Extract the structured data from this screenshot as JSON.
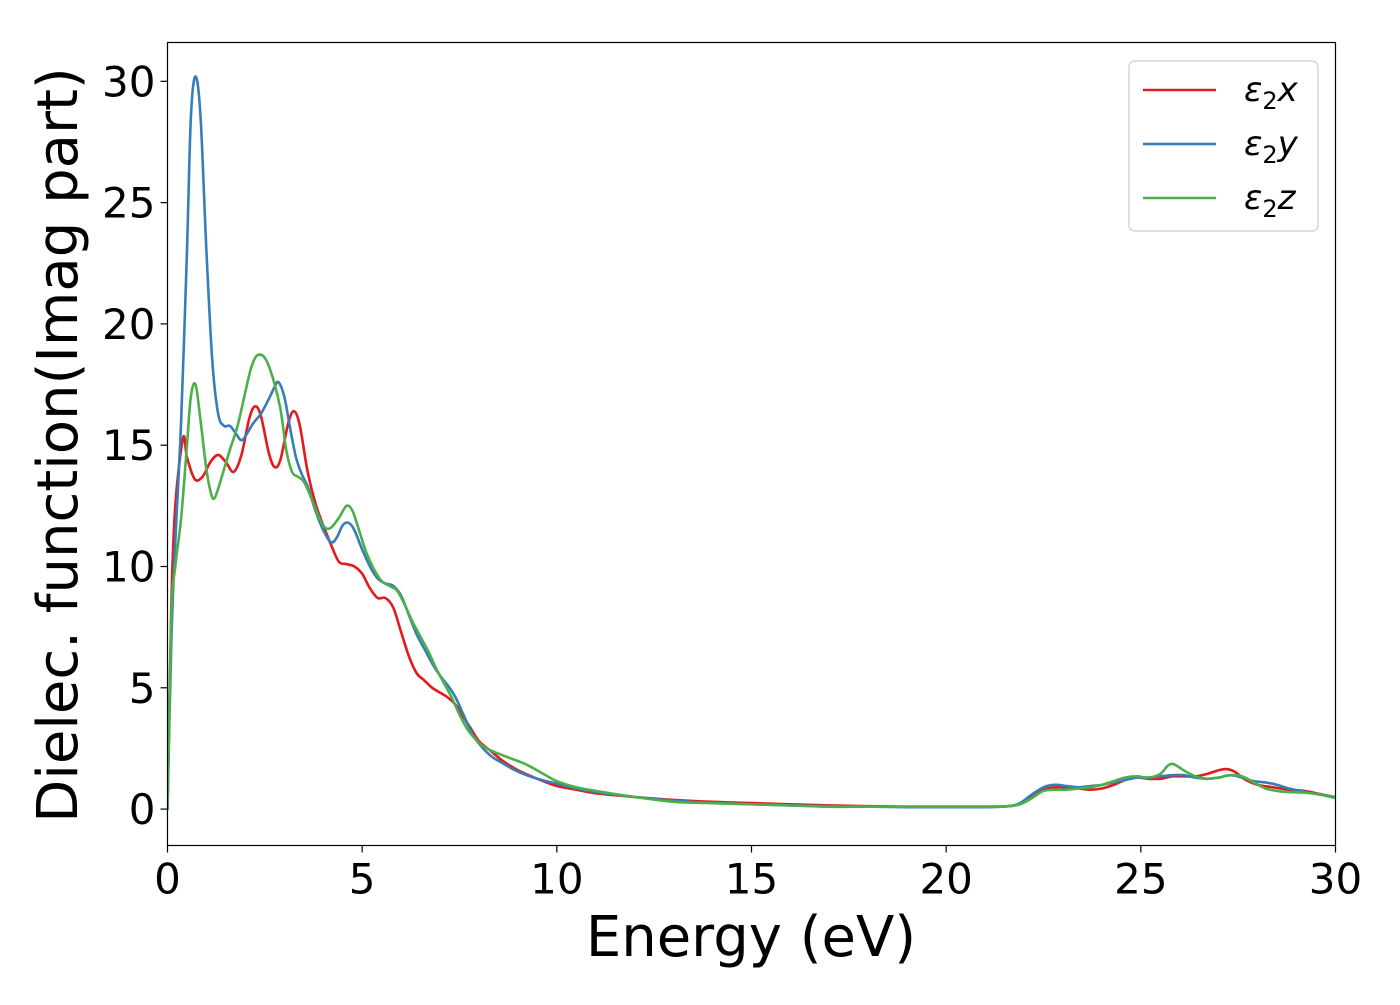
{
  "chart_data": {
    "type": "line",
    "xlabel": "Energy (eV)",
    "ylabel": "Dielec. function(Imag part)",
    "xlim": [
      0,
      30
    ],
    "ylim": [
      -1.5,
      31.6
    ],
    "xticks": [
      0,
      5,
      10,
      15,
      20,
      25,
      30
    ],
    "xtick_labels": [
      "0",
      "5",
      "10",
      "15",
      "20",
      "25",
      "30"
    ],
    "yticks": [
      0,
      5,
      10,
      15,
      20,
      25,
      30
    ],
    "ytick_labels": [
      "0",
      "5",
      "10",
      "15",
      "20",
      "25",
      "30"
    ],
    "grid": false,
    "legend_position": "top-right",
    "series": [
      {
        "name": "ε2x",
        "legend_base": "ε",
        "legend_sub": "2",
        "legend_tail": "x",
        "color": "#e41a1c",
        "points": [
          [
            0,
            0
          ],
          [
            0.1,
            8.5
          ],
          [
            0.2,
            12.5
          ],
          [
            0.4,
            15.3
          ],
          [
            0.5,
            14.5
          ],
          [
            0.7,
            13.6
          ],
          [
            0.9,
            13.7
          ],
          [
            1.1,
            14.3
          ],
          [
            1.3,
            14.6
          ],
          [
            1.5,
            14.3
          ],
          [
            1.7,
            13.9
          ],
          [
            1.9,
            14.6
          ],
          [
            2.1,
            16.1
          ],
          [
            2.25,
            16.6
          ],
          [
            2.4,
            16.2
          ],
          [
            2.6,
            14.7
          ],
          [
            2.75,
            14.1
          ],
          [
            2.9,
            14.4
          ],
          [
            3.1,
            15.9
          ],
          [
            3.25,
            16.4
          ],
          [
            3.4,
            15.8
          ],
          [
            3.6,
            13.9
          ],
          [
            3.8,
            12.6
          ],
          [
            4.0,
            11.7
          ],
          [
            4.2,
            10.9
          ],
          [
            4.4,
            10.2
          ],
          [
            4.6,
            10.1
          ],
          [
            4.8,
            10.0
          ],
          [
            5.0,
            9.7
          ],
          [
            5.2,
            9.1
          ],
          [
            5.4,
            8.7
          ],
          [
            5.6,
            8.7
          ],
          [
            5.8,
            8.3
          ],
          [
            6.0,
            7.3
          ],
          [
            6.2,
            6.3
          ],
          [
            6.4,
            5.6
          ],
          [
            6.6,
            5.3
          ],
          [
            6.8,
            5.0
          ],
          [
            7.0,
            4.8
          ],
          [
            7.2,
            4.6
          ],
          [
            7.4,
            4.3
          ],
          [
            7.6,
            3.8
          ],
          [
            7.8,
            3.3
          ],
          [
            8.0,
            2.8
          ],
          [
            8.3,
            2.4
          ],
          [
            8.6,
            2.0
          ],
          [
            9.0,
            1.6
          ],
          [
            9.5,
            1.25
          ],
          [
            10.0,
            0.95
          ],
          [
            10.5,
            0.8
          ],
          [
            11.0,
            0.65
          ],
          [
            12.0,
            0.5
          ],
          [
            13.0,
            0.38
          ],
          [
            14.0,
            0.3
          ],
          [
            15.0,
            0.25
          ],
          [
            16.0,
            0.2
          ],
          [
            17.0,
            0.15
          ],
          [
            18.0,
            0.12
          ],
          [
            19.0,
            0.1
          ],
          [
            20.0,
            0.1
          ],
          [
            21.0,
            0.1
          ],
          [
            21.6,
            0.12
          ],
          [
            21.9,
            0.22
          ],
          [
            22.2,
            0.5
          ],
          [
            22.5,
            0.8
          ],
          [
            22.8,
            0.9
          ],
          [
            23.1,
            0.9
          ],
          [
            23.4,
            0.85
          ],
          [
            23.7,
            0.8
          ],
          [
            24.0,
            0.85
          ],
          [
            24.3,
            1.0
          ],
          [
            24.6,
            1.2
          ],
          [
            24.9,
            1.3
          ],
          [
            25.2,
            1.25
          ],
          [
            25.5,
            1.25
          ],
          [
            25.8,
            1.35
          ],
          [
            26.1,
            1.35
          ],
          [
            26.4,
            1.35
          ],
          [
            26.7,
            1.45
          ],
          [
            27.0,
            1.6
          ],
          [
            27.2,
            1.65
          ],
          [
            27.4,
            1.55
          ],
          [
            27.7,
            1.2
          ],
          [
            28.0,
            1.0
          ],
          [
            28.4,
            0.9
          ],
          [
            28.8,
            0.8
          ],
          [
            29.2,
            0.75
          ],
          [
            29.6,
            0.62
          ],
          [
            30.0,
            0.48
          ]
        ]
      },
      {
        "name": "ε2y",
        "legend_base": "ε",
        "legend_sub": "2",
        "legend_tail": "y",
        "color": "#377eb8",
        "points": [
          [
            0,
            0
          ],
          [
            0.1,
            7.0
          ],
          [
            0.2,
            11.0
          ],
          [
            0.35,
            16.0
          ],
          [
            0.5,
            23.0
          ],
          [
            0.6,
            28.5
          ],
          [
            0.72,
            30.2
          ],
          [
            0.85,
            28.5
          ],
          [
            1.0,
            23.0
          ],
          [
            1.15,
            18.5
          ],
          [
            1.3,
            16.3
          ],
          [
            1.45,
            15.8
          ],
          [
            1.6,
            15.8
          ],
          [
            1.75,
            15.5
          ],
          [
            1.9,
            15.2
          ],
          [
            2.05,
            15.5
          ],
          [
            2.2,
            15.9
          ],
          [
            2.4,
            16.3
          ],
          [
            2.6,
            16.9
          ],
          [
            2.75,
            17.4
          ],
          [
            2.85,
            17.6
          ],
          [
            3.0,
            17.0
          ],
          [
            3.15,
            15.7
          ],
          [
            3.3,
            14.5
          ],
          [
            3.45,
            13.8
          ],
          [
            3.6,
            13.3
          ],
          [
            3.8,
            12.3
          ],
          [
            4.0,
            11.5
          ],
          [
            4.2,
            11.0
          ],
          [
            4.35,
            11.2
          ],
          [
            4.5,
            11.7
          ],
          [
            4.65,
            11.8
          ],
          [
            4.8,
            11.5
          ],
          [
            5.0,
            10.7
          ],
          [
            5.2,
            10.0
          ],
          [
            5.4,
            9.5
          ],
          [
            5.6,
            9.3
          ],
          [
            5.8,
            9.2
          ],
          [
            6.0,
            8.8
          ],
          [
            6.2,
            8.0
          ],
          [
            6.4,
            7.2
          ],
          [
            6.6,
            6.6
          ],
          [
            6.8,
            6.0
          ],
          [
            7.0,
            5.5
          ],
          [
            7.2,
            5.1
          ],
          [
            7.4,
            4.6
          ],
          [
            7.6,
            3.9
          ],
          [
            7.8,
            3.2
          ],
          [
            8.0,
            2.7
          ],
          [
            8.3,
            2.2
          ],
          [
            8.6,
            1.9
          ],
          [
            9.0,
            1.55
          ],
          [
            9.5,
            1.25
          ],
          [
            10.0,
            1.05
          ],
          [
            10.5,
            0.85
          ],
          [
            11.0,
            0.7
          ],
          [
            12.0,
            0.5
          ],
          [
            13.0,
            0.35
          ],
          [
            14.0,
            0.25
          ],
          [
            15.0,
            0.2
          ],
          [
            16.0,
            0.15
          ],
          [
            17.0,
            0.12
          ],
          [
            18.0,
            0.1
          ],
          [
            19.0,
            0.08
          ],
          [
            20.0,
            0.08
          ],
          [
            21.0,
            0.08
          ],
          [
            21.6,
            0.12
          ],
          [
            21.9,
            0.25
          ],
          [
            22.2,
            0.6
          ],
          [
            22.5,
            0.9
          ],
          [
            22.8,
            1.0
          ],
          [
            23.1,
            0.95
          ],
          [
            23.4,
            0.9
          ],
          [
            23.7,
            0.95
          ],
          [
            24.0,
            1.0
          ],
          [
            24.3,
            1.1
          ],
          [
            24.6,
            1.2
          ],
          [
            24.9,
            1.3
          ],
          [
            25.2,
            1.3
          ],
          [
            25.5,
            1.35
          ],
          [
            25.8,
            1.4
          ],
          [
            26.1,
            1.4
          ],
          [
            26.4,
            1.3
          ],
          [
            26.7,
            1.25
          ],
          [
            27.0,
            1.3
          ],
          [
            27.3,
            1.4
          ],
          [
            27.6,
            1.3
          ],
          [
            27.9,
            1.15
          ],
          [
            28.2,
            1.1
          ],
          [
            28.5,
            1.0
          ],
          [
            28.8,
            0.85
          ],
          [
            29.2,
            0.72
          ],
          [
            29.6,
            0.6
          ],
          [
            30.0,
            0.5
          ]
        ]
      },
      {
        "name": "ε2z",
        "legend_base": "ε",
        "legend_sub": "2",
        "legend_tail": "z",
        "color": "#4daf4a",
        "points": [
          [
            0,
            0
          ],
          [
            0.1,
            8.0
          ],
          [
            0.2,
            10.0
          ],
          [
            0.35,
            12.0
          ],
          [
            0.5,
            15.0
          ],
          [
            0.6,
            17.0
          ],
          [
            0.72,
            17.5
          ],
          [
            0.85,
            16.0
          ],
          [
            1.0,
            14.0
          ],
          [
            1.12,
            13.0
          ],
          [
            1.2,
            12.8
          ],
          [
            1.3,
            13.2
          ],
          [
            1.45,
            14.0
          ],
          [
            1.6,
            14.8
          ],
          [
            1.8,
            15.8
          ],
          [
            2.0,
            17.2
          ],
          [
            2.15,
            18.2
          ],
          [
            2.3,
            18.7
          ],
          [
            2.5,
            18.6
          ],
          [
            2.7,
            17.8
          ],
          [
            2.9,
            16.5
          ],
          [
            3.05,
            14.8
          ],
          [
            3.2,
            13.9
          ],
          [
            3.35,
            13.7
          ],
          [
            3.5,
            13.5
          ],
          [
            3.7,
            12.8
          ],
          [
            3.9,
            12.0
          ],
          [
            4.05,
            11.6
          ],
          [
            4.2,
            11.6
          ],
          [
            4.4,
            12.0
          ],
          [
            4.6,
            12.5
          ],
          [
            4.75,
            12.3
          ],
          [
            4.9,
            11.6
          ],
          [
            5.1,
            10.6
          ],
          [
            5.3,
            9.9
          ],
          [
            5.5,
            9.4
          ],
          [
            5.7,
            9.2
          ],
          [
            5.9,
            9.0
          ],
          [
            6.1,
            8.4
          ],
          [
            6.3,
            7.7
          ],
          [
            6.5,
            7.1
          ],
          [
            6.7,
            6.5
          ],
          [
            6.9,
            5.8
          ],
          [
            7.1,
            5.2
          ],
          [
            7.3,
            4.6
          ],
          [
            7.5,
            3.9
          ],
          [
            7.7,
            3.3
          ],
          [
            7.9,
            2.9
          ],
          [
            8.1,
            2.6
          ],
          [
            8.4,
            2.35
          ],
          [
            8.8,
            2.1
          ],
          [
            9.2,
            1.85
          ],
          [
            9.6,
            1.5
          ],
          [
            10.0,
            1.15
          ],
          [
            10.5,
            0.9
          ],
          [
            11.0,
            0.75
          ],
          [
            12.0,
            0.5
          ],
          [
            13.0,
            0.3
          ],
          [
            14.0,
            0.25
          ],
          [
            15.0,
            0.2
          ],
          [
            16.0,
            0.15
          ],
          [
            17.0,
            0.1
          ],
          [
            18.0,
            0.1
          ],
          [
            19.0,
            0.1
          ],
          [
            20.0,
            0.1
          ],
          [
            21.0,
            0.1
          ],
          [
            21.6,
            0.12
          ],
          [
            21.9,
            0.2
          ],
          [
            22.2,
            0.45
          ],
          [
            22.5,
            0.75
          ],
          [
            22.8,
            0.8
          ],
          [
            23.1,
            0.8
          ],
          [
            23.4,
            0.85
          ],
          [
            23.7,
            0.9
          ],
          [
            24.0,
            1.0
          ],
          [
            24.3,
            1.15
          ],
          [
            24.6,
            1.3
          ],
          [
            24.9,
            1.35
          ],
          [
            25.2,
            1.3
          ],
          [
            25.5,
            1.45
          ],
          [
            25.7,
            1.8
          ],
          [
            25.85,
            1.85
          ],
          [
            26.1,
            1.6
          ],
          [
            26.4,
            1.35
          ],
          [
            26.7,
            1.25
          ],
          [
            27.0,
            1.3
          ],
          [
            27.3,
            1.4
          ],
          [
            27.6,
            1.35
          ],
          [
            27.9,
            1.1
          ],
          [
            28.2,
            0.85
          ],
          [
            28.5,
            0.75
          ],
          [
            28.8,
            0.7
          ],
          [
            29.2,
            0.68
          ],
          [
            29.6,
            0.6
          ],
          [
            30.0,
            0.45
          ]
        ]
      }
    ]
  }
}
